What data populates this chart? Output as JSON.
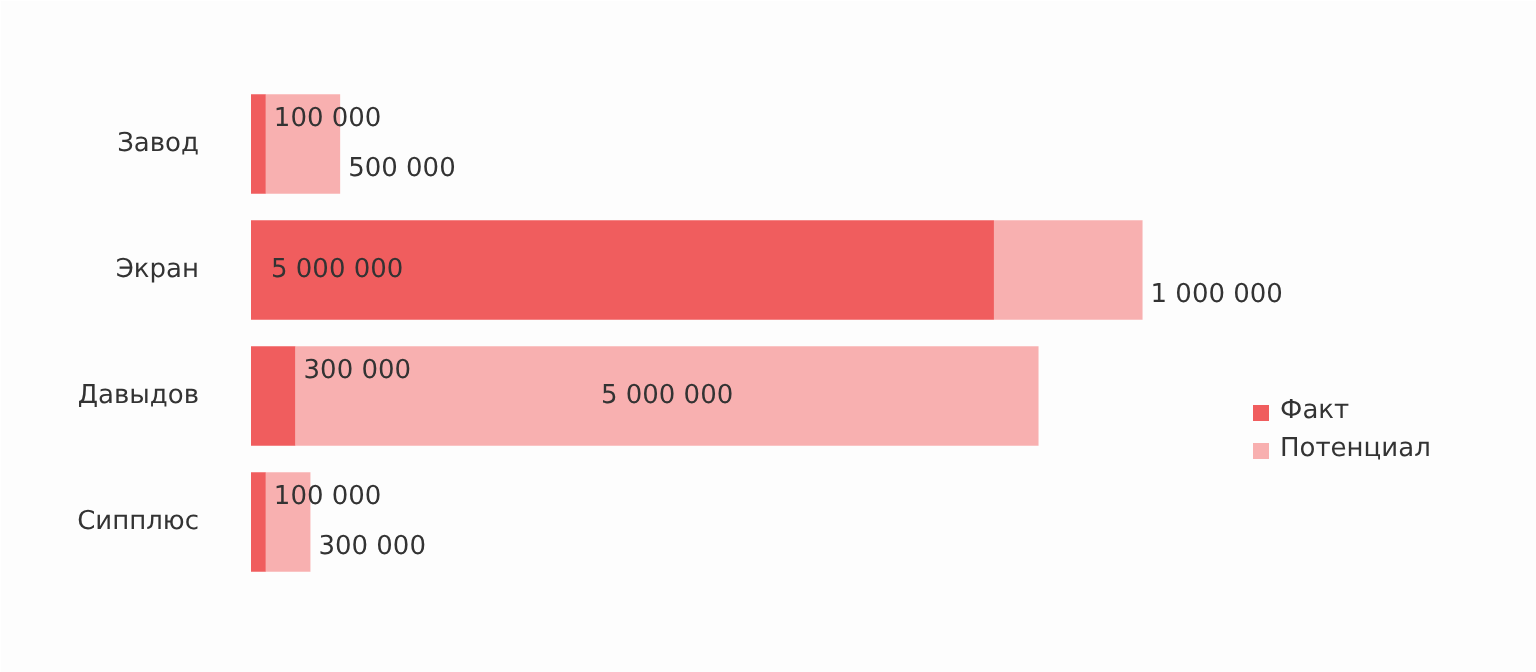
{
  "chart_data": {
    "type": "bar",
    "orientation": "horizontal",
    "stacked": true,
    "categories": [
      "Завод",
      "Экран",
      "Давыдов",
      "Сипплюс"
    ],
    "series": [
      {
        "name": "Факт",
        "color": "#f05d5e",
        "values": [
          100000,
          5000000,
          300000,
          100000
        ],
        "value_labels": [
          "100 000",
          "5 000 000",
          "300 000",
          "100 000"
        ]
      },
      {
        "name": "Потенциал",
        "color": "#f8b0b0",
        "values": [
          500000,
          1000000,
          5000000,
          300000
        ],
        "value_labels": [
          "500 000",
          "1 000 000",
          "5 000 000",
          "300 000"
        ]
      }
    ],
    "tick_labels": "y",
    "legend": "right",
    "grid": false
  }
}
